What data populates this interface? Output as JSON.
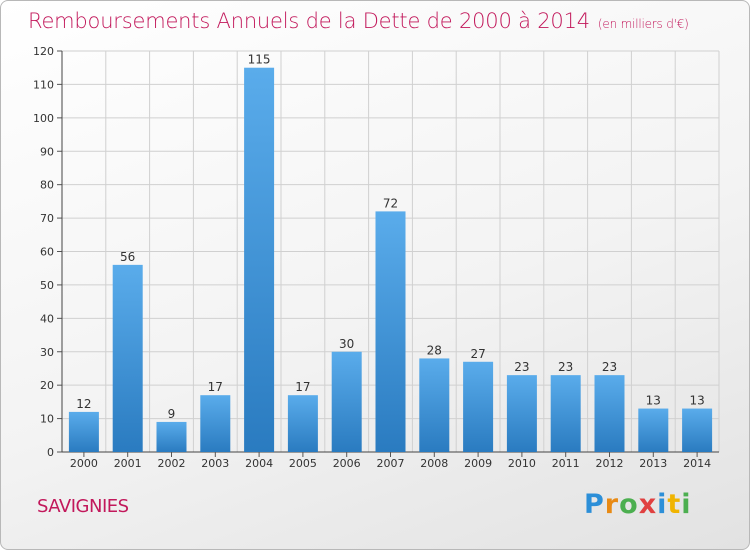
{
  "title": "Remboursements Annuels de la Dette de 2000 à 2014",
  "unit": "(en milliers d'€)",
  "town": "SAVIGNIES",
  "logo": {
    "text": "Proxiti"
  },
  "colors": {
    "title": "#c2185b",
    "bar_light": "#5aaceb",
    "bar_dark": "#2a7bc0",
    "grid": "#d0d0d0"
  },
  "chart_data": {
    "type": "bar",
    "title": "Remboursements Annuels de la Dette de 2000 à 2014",
    "xlabel": "",
    "ylabel": "",
    "categories": [
      "2000",
      "2001",
      "2002",
      "2003",
      "2004",
      "2005",
      "2006",
      "2007",
      "2008",
      "2009",
      "2010",
      "2011",
      "2012",
      "2013",
      "2014"
    ],
    "values": [
      12,
      56,
      9,
      17,
      115,
      17,
      30,
      72,
      28,
      27,
      23,
      23,
      23,
      13,
      13
    ],
    "ylim": [
      0,
      120
    ],
    "yticks": [
      0,
      10,
      20,
      30,
      40,
      50,
      60,
      70,
      80,
      90,
      100,
      110,
      120
    ],
    "grid": true,
    "data_labels": true
  }
}
